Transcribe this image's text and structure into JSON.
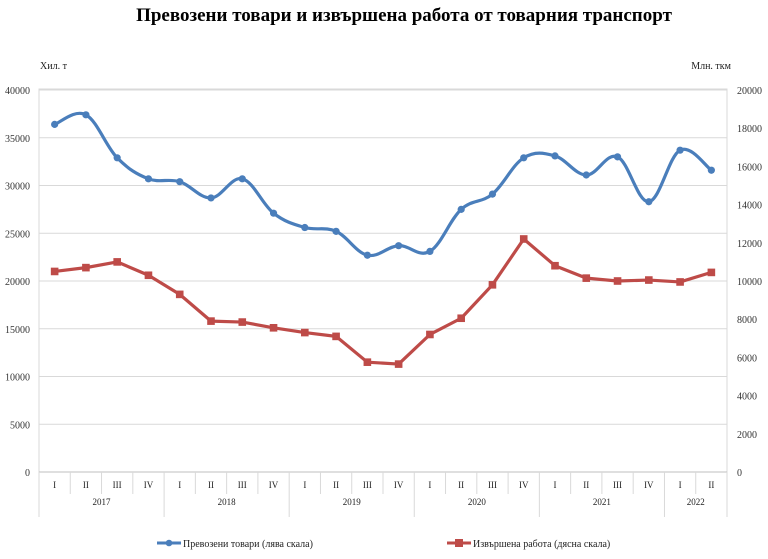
{
  "chart_data": {
    "type": "line",
    "title": "Превозени товари и извършена работа от товарния транспорт",
    "left_axis_label": "Хил. т",
    "right_axis_label": "Млн. ткм",
    "left_ylim": [
      0,
      40000
    ],
    "left_ticks": [
      0,
      5000,
      10000,
      15000,
      20000,
      25000,
      30000,
      35000,
      40000
    ],
    "right_ylim": [
      0,
      20000
    ],
    "right_ticks": [
      0,
      2000,
      4000,
      6000,
      8000,
      10000,
      12000,
      14000,
      16000,
      18000,
      20000
    ],
    "grid": true,
    "legend_position": "bottom",
    "categories": [
      "I",
      "II",
      "III",
      "IV",
      "I",
      "II",
      "III",
      "IV",
      "I",
      "II",
      "III",
      "IV",
      "I",
      "II",
      "III",
      "IV",
      "I",
      "II",
      "III",
      "IV",
      "I",
      "II"
    ],
    "years": [
      {
        "label": "2017",
        "count": 4
      },
      {
        "label": "2018",
        "count": 4
      },
      {
        "label": "2019",
        "count": 4
      },
      {
        "label": "2020",
        "count": 4
      },
      {
        "label": "2021",
        "count": 4
      },
      {
        "label": "2022",
        "count": 2
      }
    ],
    "series": [
      {
        "name": "Превозени товари (лява скала)",
        "axis": "left",
        "color": "#4A7EBB",
        "marker": "circle",
        "smooth": true,
        "values": [
          36400,
          37400,
          32900,
          30700,
          30400,
          28700,
          30700,
          27100,
          25600,
          25200,
          22700,
          23700,
          23100,
          27500,
          29100,
          32900,
          33100,
          31100,
          33000,
          28300,
          33700,
          31600
        ]
      },
      {
        "name": "Извършена работа (дясна скала)",
        "axis": "right",
        "color": "#BE4B48",
        "marker": "square",
        "smooth": false,
        "values": [
          10500,
          10700,
          11000,
          10300,
          9300,
          7900,
          7850,
          7550,
          7300,
          7100,
          5750,
          5650,
          7200,
          8050,
          9800,
          12200,
          10800,
          10150,
          10000,
          10050,
          9950,
          10450
        ]
      }
    ]
  }
}
